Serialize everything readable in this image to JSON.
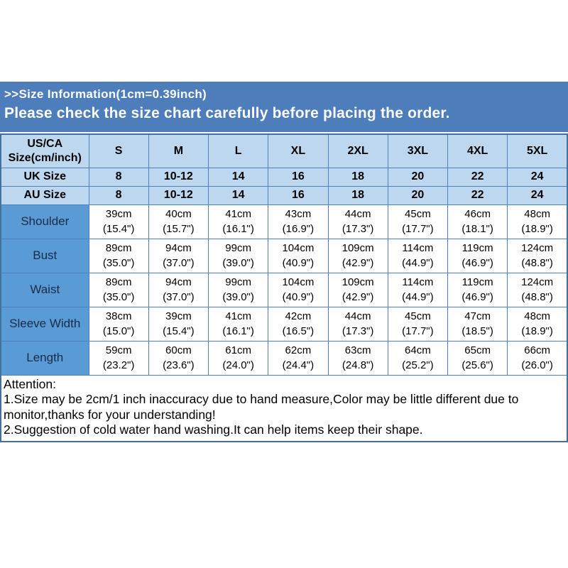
{
  "banner": {
    "line1": ">>Size Information(1cm=0.39inch)",
    "line2": "Please check the size chart carefully before placing the order."
  },
  "table": {
    "columns": [
      "US/CA\nSize(cm/inch)",
      "S",
      "M",
      "L",
      "XL",
      "2XL",
      "3XL",
      "4XL",
      "5XL"
    ],
    "size_rows": [
      {
        "label": "UK Size",
        "values": [
          "8",
          "10-12",
          "14",
          "16",
          "18",
          "20",
          "22",
          "24"
        ]
      },
      {
        "label": "AU Size",
        "values": [
          "8",
          "10-12",
          "14",
          "16",
          "18",
          "20",
          "22",
          "24"
        ]
      }
    ],
    "measure_rows": [
      {
        "label": "Shoulder",
        "values": [
          "39cm\n(15.4\")",
          "40cm\n(15.7\")",
          "41cm\n(16.1\")",
          "43cm\n(16.9\")",
          "44cm\n(17.3\")",
          "45cm\n(17.7\")",
          "46cm\n(18.1\")",
          "48cm\n(18.9\")"
        ]
      },
      {
        "label": "Bust",
        "values": [
          "89cm\n(35.0\")",
          "94cm\n(37.0\")",
          "99cm\n(39.0\")",
          "104cm\n(40.9\")",
          "109cm\n(42.9\")",
          "114cm\n(44.9\")",
          "119cm\n(46.9\")",
          "124cm\n(48.8\")"
        ]
      },
      {
        "label": "Waist",
        "values": [
          "89cm\n(35.0\")",
          "94cm\n(37.0\")",
          "99cm\n(39.0\")",
          "104cm\n(40.9\")",
          "109cm\n(42.9\")",
          "114cm\n(44.9\")",
          "119cm\n(46.9\")",
          "124cm\n(48.8\")"
        ]
      },
      {
        "label": "Sleeve Width",
        "values": [
          "38cm\n(15.0\")",
          "39cm\n(15.4\")",
          "41cm\n(16.1\")",
          "42cm\n(16.5\")",
          "44cm\n(17.3\")",
          "45cm\n(17.7\")",
          "47cm\n(18.5\")",
          "48cm\n(18.9\")"
        ]
      },
      {
        "label": "Length",
        "values": [
          "59cm\n(23.2\")",
          "60cm\n(23.6\")",
          "61cm\n(24.0\")",
          "62cm\n(24.4\")",
          "63cm\n(24.8\")",
          "64cm\n(25.2\")",
          "65cm\n(25.6\")",
          "66cm\n(26.0\")"
        ]
      }
    ]
  },
  "attention": {
    "title": "Attention:",
    "lines": [
      "1.Size may be 2cm/1 inch inaccuracy due to hand measure,Color may be little different due to monitor,thanks for your understanding!",
      "2.Suggestion of cold water hand washing.It can help items keep their shape."
    ]
  },
  "colors": {
    "banner_bg": "#4d7ebb",
    "header_bg": "#bdd7ee",
    "label_bg": "#5b9bd5",
    "border": "#4f81bd",
    "banner_text": "#ffffff",
    "body_text": "#000000"
  }
}
